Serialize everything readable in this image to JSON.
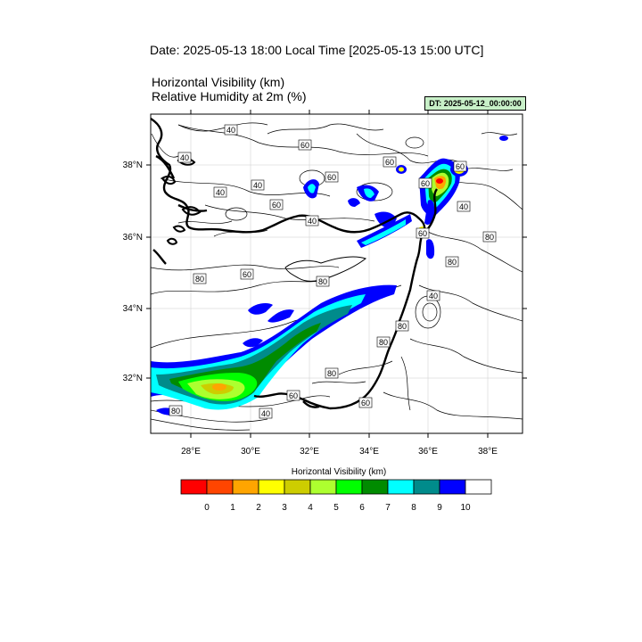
{
  "header": {
    "date_line": "Date: 2025-05-13  18:00 Local Time [2025-05-13  15:00 UTC]",
    "var_line_1": "Horizontal Visibility   (km)",
    "var_line_2": "Relative Humidity at 2m   (%)",
    "dt_badge": "DT: 2025-05-12_00:00:00"
  },
  "map": {
    "lon_range": [
      26.7,
      39.2
    ],
    "lat_range": [
      30.4,
      39.3
    ],
    "lon_ticks": [
      "28°E",
      "30°E",
      "32°E",
      "34°E",
      "36°E",
      "38°E"
    ],
    "lat_ticks": [
      "32°N",
      "34°N",
      "36°N",
      "38°N"
    ],
    "contour_labels": [
      "40",
      "40",
      "60",
      "40",
      "40",
      "60",
      "60",
      "60",
      "40",
      "80",
      "60",
      "60",
      "40",
      "80",
      "80",
      "60",
      "40",
      "80",
      "80",
      "60",
      "80",
      "80",
      "60",
      "60",
      "40",
      "80"
    ]
  },
  "legend": {
    "title": "Horizontal Visibility  (km)",
    "colors": [
      "#ff0000",
      "#ff4500",
      "#ffa500",
      "#ffff00",
      "#cdcd00",
      "#adff2f",
      "#00ff00",
      "#008b00",
      "#00ffff",
      "#008b8b",
      "#0000ff",
      "#ffffff"
    ],
    "labels": [
      "0",
      "1",
      "2",
      "3",
      "4",
      "5",
      "6",
      "7",
      "8",
      "9",
      "10"
    ]
  }
}
